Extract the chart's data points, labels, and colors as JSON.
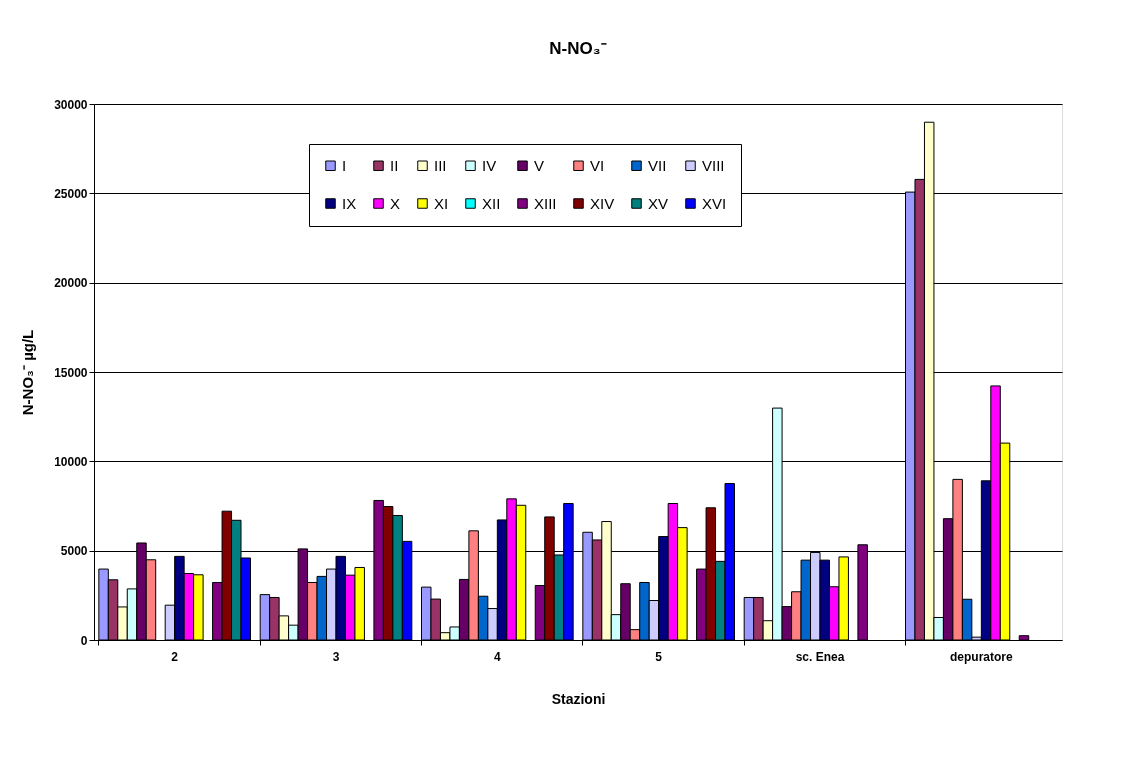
{
  "chart_data": {
    "type": "bar",
    "title": "N-NO₃⁻",
    "xlabel": "Stazioni",
    "ylabel": "N-NO₃⁻ µg/L",
    "categories": [
      "2",
      "3",
      "4",
      "5",
      "sc. Enea",
      "depuratore"
    ],
    "ylim": [
      0,
      30000
    ],
    "yticks": [
      0,
      5000,
      10000,
      15000,
      20000,
      25000,
      30000
    ],
    "grid": "y",
    "legend": "top",
    "series": [
      {
        "name": "I",
        "color": "#9999ff",
        "values": [
          3970,
          2540,
          2960,
          6030,
          2380,
          25070
        ]
      },
      {
        "name": "II",
        "color": "#993366",
        "values": [
          3370,
          2380,
          2290,
          5600,
          2380,
          25780
        ]
      },
      {
        "name": "III",
        "color": "#ffffcc",
        "values": [
          1850,
          1350,
          410,
          6630,
          1080,
          28980
        ]
      },
      {
        "name": "IV",
        "color": "#ccffff",
        "values": [
          2860,
          830,
          730,
          1420,
          12980,
          1260
        ]
      },
      {
        "name": "V",
        "color": "#660066",
        "values": [
          5430,
          5100,
          3390,
          3150,
          1870,
          6790
        ]
      },
      {
        "name": "VI",
        "color": "#ff8080",
        "values": [
          4490,
          3220,
          6110,
          580,
          2700,
          8990
        ]
      },
      {
        "name": "VII",
        "color": "#0066cc",
        "values": [
          null,
          3560,
          2450,
          3220,
          4470,
          2280
        ]
      },
      {
        "name": "VIII",
        "color": "#ccccff",
        "values": [
          1950,
          3970,
          1760,
          2210,
          4900,
          160
        ]
      },
      {
        "name": "IX",
        "color": "#000080",
        "values": [
          4680,
          4680,
          6720,
          5790,
          4470,
          8910
        ]
      },
      {
        "name": "X",
        "color": "#ff00ff",
        "values": [
          3720,
          3630,
          7900,
          7640,
          2980,
          14220
        ]
      },
      {
        "name": "XI",
        "color": "#ffff00",
        "values": [
          3650,
          4060,
          7540,
          6290,
          4650,
          11020
        ]
      },
      {
        "name": "XII",
        "color": "#00ffff",
        "values": [
          null,
          null,
          null,
          null,
          null,
          null
        ]
      },
      {
        "name": "XIII",
        "color": "#800080",
        "values": [
          3220,
          7810,
          3050,
          3970,
          5330,
          240
        ]
      },
      {
        "name": "XIV",
        "color": "#800000",
        "values": [
          7210,
          7470,
          6890,
          7400,
          null,
          null
        ]
      },
      {
        "name": "XV",
        "color": "#008080",
        "values": [
          6700,
          6970,
          4760,
          4400,
          null,
          null
        ]
      },
      {
        "name": "XVI",
        "color": "#0000ff",
        "values": [
          4590,
          5520,
          7640,
          8760,
          null,
          null
        ]
      }
    ]
  }
}
